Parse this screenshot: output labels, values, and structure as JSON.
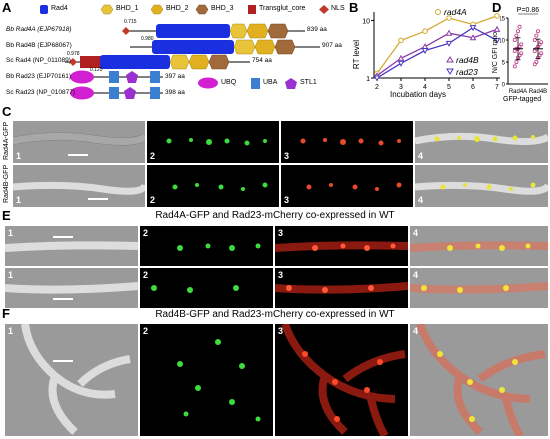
{
  "panel_A": {
    "label": "A",
    "legend_top": [
      "Rad4",
      "BHD_1",
      "BHD_2",
      "BHD_3",
      "Transglut_core",
      "NLS"
    ],
    "legend_bottom": [
      "UBQ",
      "UBA",
      "STL1"
    ],
    "proteins": [
      {
        "name": "Bb Rad4A (EJP67918)",
        "length": "839 aa",
        "score": "0.715"
      },
      {
        "name": "Bb Rad4B (EJP68067)",
        "length": "907 aa",
        "score": "0.980"
      },
      {
        "name": "Sc Rad4 (NP_011089)",
        "length": "754 aa",
        "score": "0.978"
      },
      {
        "name": "Bb Rad23 (EJP70161)",
        "length": "397 aa",
        "score": "0.125"
      },
      {
        "name": "Sc Rad23 (NP_010877)",
        "length": "398 aa",
        "score": ""
      }
    ],
    "colors": {
      "Rad4": "#1a2fe0",
      "BHD_1": "#e8c43a",
      "BHD_2": "#e0b020",
      "BHD_3": "#a06a3a",
      "Transglut_core": "#b02020",
      "NLS": "#c0392b",
      "UBQ": "#d21fd2",
      "UBA": "#3a7fd0",
      "STL1": "#9b30d0"
    }
  },
  "panel_B": {
    "label": "B",
    "chart_data": {
      "type": "line",
      "ylabel": "RT level",
      "xlabel": "Incubation days",
      "x": [
        2,
        3,
        4,
        5,
        6,
        7
      ],
      "yscale": "log",
      "ylim": [
        1,
        10
      ],
      "yticks": [
        "1",
        "10"
      ],
      "series": [
        {
          "name": "rad4A",
          "values": [
            1.2,
            4.5,
            6.5,
            11.0,
            8.5,
            12.0
          ],
          "color": "#d4a830",
          "marker": "circle"
        },
        {
          "name": "rad4B",
          "values": [
            1.1,
            2.2,
            3.5,
            6.0,
            5.0,
            7.0
          ],
          "color": "#8a3aa8",
          "marker": "triangle"
        },
        {
          "name": "rad23",
          "values": [
            1.0,
            1.8,
            3.0,
            4.0,
            7.5,
            4.5
          ],
          "color": "#4a3ac0",
          "marker": "triangle-down"
        }
      ]
    }
  },
  "panel_D": {
    "label": "D",
    "chart_data": {
      "type": "scatter",
      "ylabel": "N/C GFI ratio",
      "xlabel": "GFP-tagged",
      "categories": [
        "Rad4A",
        "Rad4B"
      ],
      "annotation": "P=0.86",
      "ylim": [
        0,
        15
      ],
      "yticks": [
        "0",
        "5",
        "10",
        "15"
      ],
      "series": [
        {
          "name": "Rad4A",
          "values": [
            4,
            5,
            6,
            6.5,
            7,
            7.5,
            8,
            8,
            8.5,
            9,
            10,
            11,
            12,
            13
          ],
          "mean": 8,
          "sd": 2.5
        },
        {
          "name": "Rad4B",
          "values": [
            4.5,
            5,
            6,
            6.5,
            7,
            7.5,
            8,
            8.5,
            9,
            9.5,
            10,
            11,
            12
          ],
          "mean": 8,
          "sd": 2.2
        }
      ]
    }
  },
  "panel_C": {
    "label": "C",
    "rows": [
      "Rad4A-GFP",
      "Rad4B-GFP"
    ],
    "numbers": [
      "1",
      "2",
      "3",
      "4"
    ]
  },
  "panel_E": {
    "label": "E",
    "title": "Rad4A-GFP and Rad23-mCherry co-expressed in WT",
    "numbers": [
      "1",
      "2",
      "3",
      "4"
    ]
  },
  "panel_F": {
    "label": "F",
    "title": "Rad4B-GFP and Rad23-mCherry co-expressed in WT",
    "numbers": [
      "1",
      "2",
      "3",
      "4"
    ]
  }
}
